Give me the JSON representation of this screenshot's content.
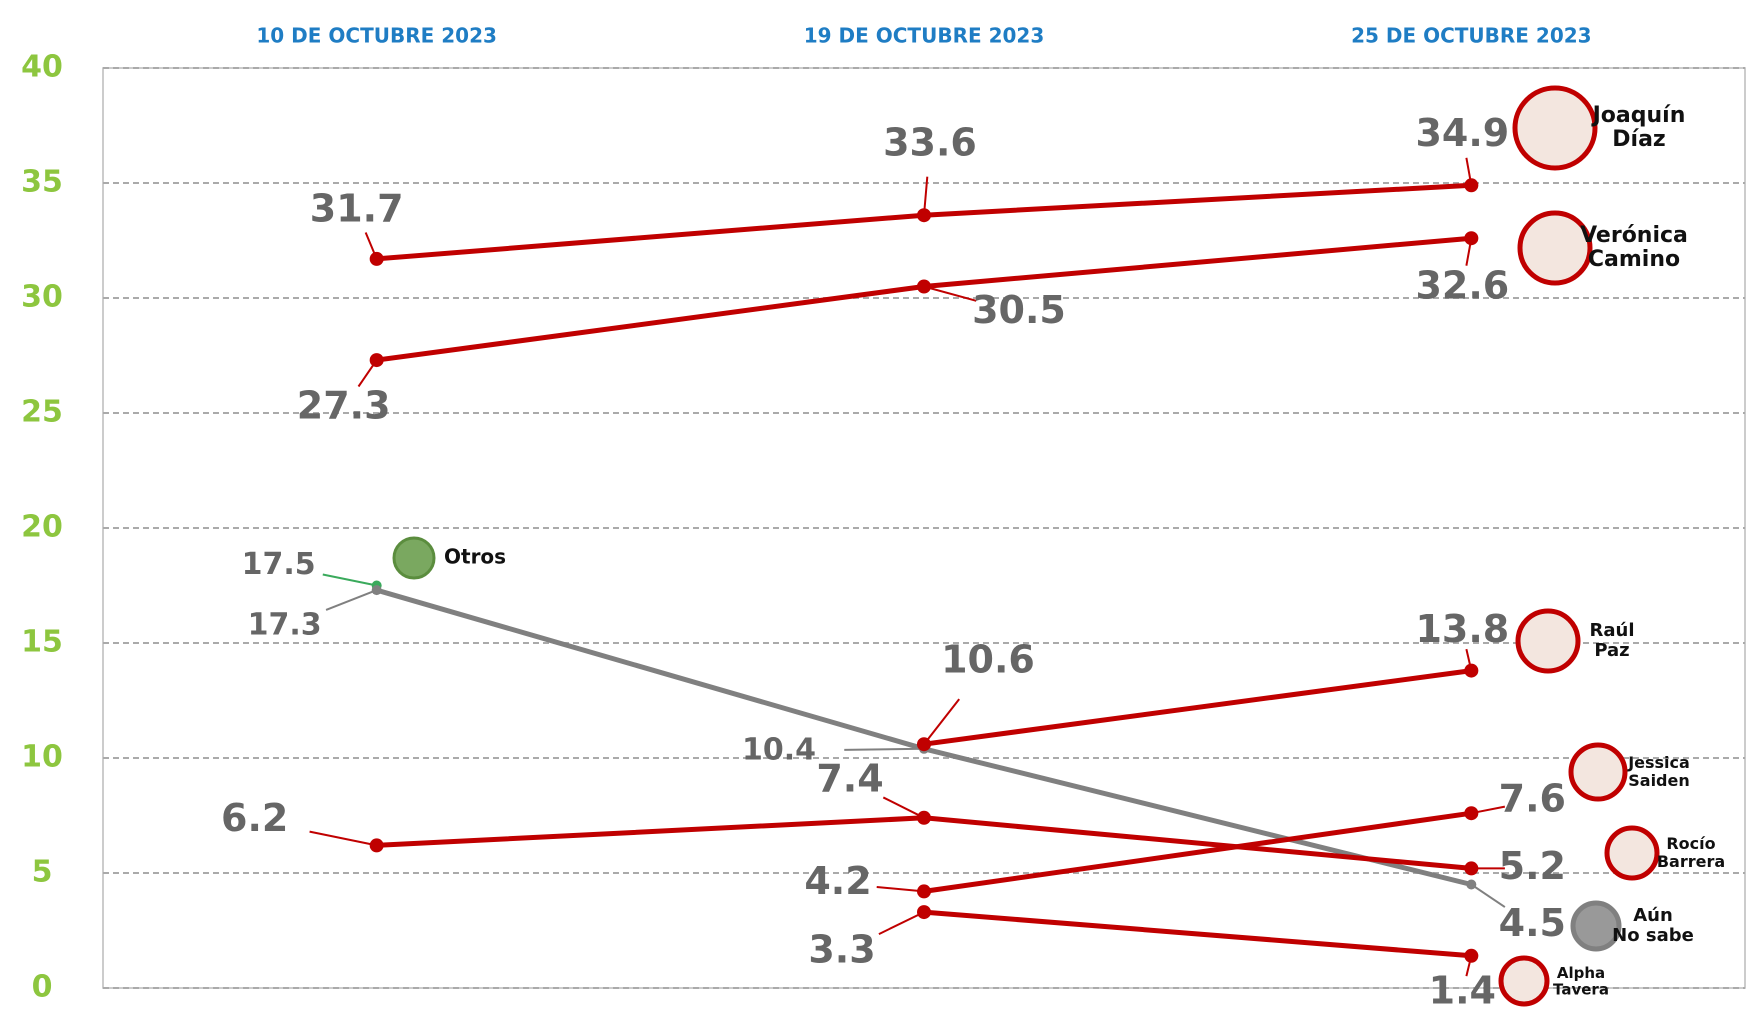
{
  "chart_data": {
    "type": "line",
    "categories": [
      "10 DE OCTUBRE 2023",
      "19 DE OCTUBRE 2023",
      "25 DE OCTUBRE 2023"
    ],
    "ylim": [
      0,
      40
    ],
    "yticks": [
      0,
      5,
      10,
      15,
      20,
      25,
      30,
      35,
      40
    ],
    "grid": true,
    "series": [
      {
        "name": "Joaquín Díaz",
        "color": "#c00000",
        "values": [
          31.7,
          33.6,
          34.9
        ]
      },
      {
        "name": "Verónica Camino",
        "color": "#c00000",
        "values": [
          27.3,
          30.5,
          32.6
        ]
      },
      {
        "name": "Otros",
        "color": "#3aaa5c",
        "values": [
          17.5,
          null,
          null
        ]
      },
      {
        "name": "Aún No sabe",
        "color": "#808080",
        "values": [
          17.3,
          10.4,
          4.5
        ]
      },
      {
        "name": "Raúl Paz",
        "color": "#c00000",
        "values": [
          null,
          10.6,
          13.8
        ]
      },
      {
        "name": "Jessica Saiden",
        "color": "#c00000",
        "values": [
          null,
          4.2,
          7.6
        ]
      },
      {
        "name": "Rocío Barrera",
        "color": "#c00000",
        "values": [
          6.2,
          7.4,
          5.2
        ]
      },
      {
        "name": "Alpha Tavera",
        "color": "#c00000",
        "values": [
          null,
          3.3,
          1.4
        ]
      }
    ]
  }
}
